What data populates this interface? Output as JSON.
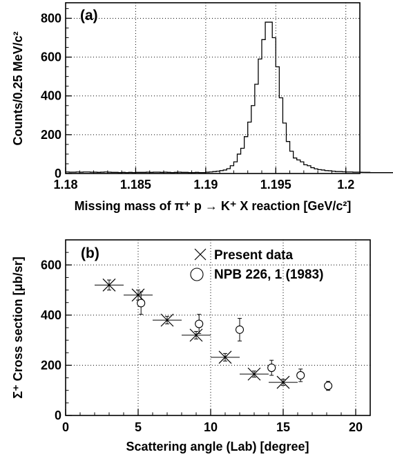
{
  "chart_data": [
    {
      "type": "histogram",
      "panel_label": "(a)",
      "xlabel": "Missing mass of π⁺ p → K⁺ X reaction [GeV/c²]",
      "ylabel": "Counts/0.25 MeV/c²",
      "xlim": [
        1.18,
        1.201
      ],
      "ylim": [
        0,
        880
      ],
      "xticks": [
        "1.18",
        "1.185",
        "1.19",
        "1.195",
        "1.2"
      ],
      "yticks": [
        "0",
        "200",
        "400",
        "600",
        "800"
      ],
      "grid": true,
      "bin_width": 0.00025,
      "bin_start": 1.18,
      "values": [
        8,
        7,
        7,
        8,
        7,
        8,
        8,
        7,
        7,
        6,
        7,
        8,
        7,
        6,
        6,
        5,
        6,
        5,
        6,
        5,
        6,
        6,
        6,
        7,
        6,
        7,
        7,
        6,
        7,
        6,
        5,
        6,
        7,
        6,
        6,
        5,
        5,
        6,
        5,
        5,
        7,
        8,
        10,
        12,
        15,
        18,
        25,
        40,
        60,
        100,
        130,
        190,
        265,
        350,
        460,
        590,
        690,
        780,
        780,
        700,
        550,
        390,
        260,
        165,
        115,
        80,
        70,
        60,
        45,
        40,
        30,
        24,
        20,
        18,
        15,
        14,
        12,
        10,
        10,
        9,
        8,
        8,
        7,
        7,
        7,
        6,
        6,
        6,
        5,
        5,
        5,
        5,
        5,
        5,
        5,
        4,
        5,
        4,
        4,
        5,
        5,
        4,
        4,
        4,
        5,
        4,
        4,
        5,
        4,
        4,
        4,
        5,
        4,
        4,
        4,
        5,
        4,
        4,
        4,
        5,
        4,
        4,
        4,
        4,
        4,
        5,
        4,
        4,
        4,
        4,
        4,
        4,
        4
      ]
    },
    {
      "type": "scatter",
      "panel_label": "(b)",
      "xlabel": "Scattering angle (Lab) [degree]",
      "ylabel": "Σ⁺ Cross section [μb/sr]",
      "xlim": [
        0,
        21
      ],
      "ylim": [
        0,
        700
      ],
      "xticks": [
        "0",
        "5",
        "10",
        "15",
        "20"
      ],
      "yticks": [
        "0",
        "200",
        "400",
        "600"
      ],
      "grid": true,
      "legend_position": "top-right",
      "series": [
        {
          "name": "Present data",
          "marker": "cross",
          "points": [
            {
              "x": 3,
              "y": 520,
              "xerr": 1,
              "yerr": 20
            },
            {
              "x": 5,
              "y": 480,
              "xerr": 1,
              "yerr": 20
            },
            {
              "x": 7,
              "y": 380,
              "xerr": 1,
              "yerr": 15
            },
            {
              "x": 9,
              "y": 320,
              "xerr": 1,
              "yerr": 15
            },
            {
              "x": 11,
              "y": 232,
              "xerr": 1,
              "yerr": 15
            },
            {
              "x": 13,
              "y": 165,
              "xerr": 1,
              "yerr": 12
            },
            {
              "x": 15,
              "y": 132,
              "xerr": 1,
              "yerr": 12
            }
          ]
        },
        {
          "name": "NPB 226, 1 (1983)",
          "marker": "circle",
          "points": [
            {
              "x": 5.2,
              "y": 448,
              "xerr": 0,
              "yerr": 45
            },
            {
              "x": 9.2,
              "y": 365,
              "xerr": 0,
              "yerr": 38
            },
            {
              "x": 12.0,
              "y": 342,
              "xerr": 0,
              "yerr": 45
            },
            {
              "x": 14.2,
              "y": 190,
              "xerr": 0,
              "yerr": 30
            },
            {
              "x": 16.2,
              "y": 160,
              "xerr": 0,
              "yerr": 25
            },
            {
              "x": 18.1,
              "y": 118,
              "xerr": 0,
              "yerr": 18
            }
          ]
        }
      ]
    }
  ]
}
